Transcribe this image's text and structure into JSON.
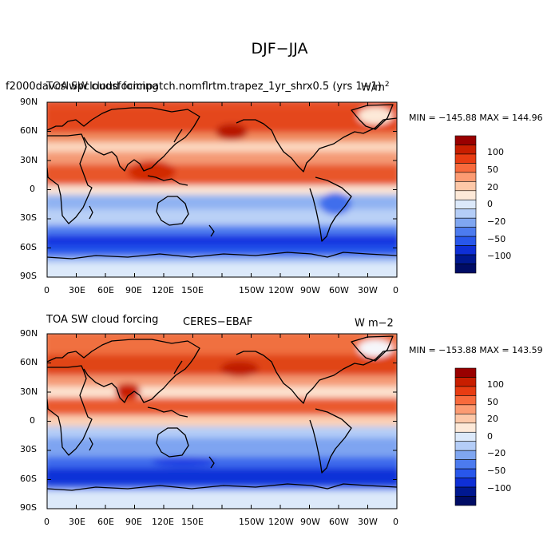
{
  "figure": {
    "title": "DJF−JJA"
  },
  "axis": {
    "lat_labels": [
      "90N",
      "60N",
      "30N",
      "0",
      "30S",
      "60S",
      "90S"
    ],
    "lon_labels": [
      "0",
      "30E",
      "60E",
      "90E",
      "120E",
      "150E",
      "150W",
      "120W",
      "90W",
      "60W",
      "30W",
      "0"
    ]
  },
  "colorbar": {
    "labels": [
      "100",
      "50",
      "20",
      "0",
      "−20",
      "−50",
      "−100"
    ],
    "colors": [
      "#990000",
      "#c81e00",
      "#e83c12",
      "#f86a3c",
      "#fc9b72",
      "#fdc8a8",
      "#fde9d8",
      "#dce9fa",
      "#b4cdf7",
      "#7fa6f1",
      "#4c7bef",
      "#2857eb",
      "#0e2fd6",
      "#001890",
      "#000c65"
    ]
  },
  "panels": [
    {
      "id": "model",
      "left_title": "f2000davcslwpcloudsfocimpatch.nomflrtm.trapez_1yr_shrx0.5 (yrs 1−1)",
      "center_title": "TOA SW cloud forcing",
      "right_title": "W/m",
      "right_title_sup": "2",
      "min_max": "MIN = −145.88  MAX = 144.96"
    },
    {
      "id": "obs",
      "left_title": "TOA SW cloud forcing",
      "center_title": "CERES−EBAF",
      "right_title": "W m−2",
      "right_title_sup": "",
      "min_max": "MIN = −153.88  MAX = 143.59"
    }
  ]
}
